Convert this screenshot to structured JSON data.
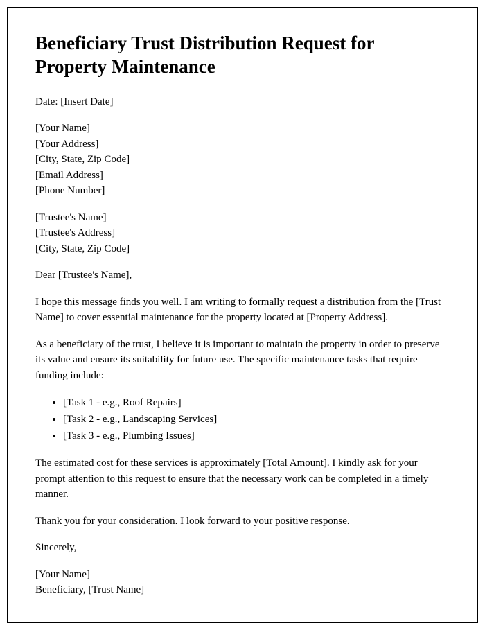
{
  "document": {
    "title": "Beneficiary Trust Distribution Request for Property Maintenance",
    "date_line": "Date: [Insert Date]",
    "sender": {
      "name": "[Your Name]",
      "address": "[Your Address]",
      "city_state_zip": "[City, State, Zip Code]",
      "email": "[Email Address]",
      "phone": "[Phone Number]"
    },
    "recipient": {
      "name": "[Trustee's Name]",
      "address": "[Trustee's Address]",
      "city_state_zip": "[City, State, Zip Code]"
    },
    "salutation": "Dear [Trustee's Name],",
    "paragraph1": "I hope this message finds you well. I am writing to formally request a distribution from the [Trust Name] to cover essential maintenance for the property located at [Property Address].",
    "paragraph2": "As a beneficiary of the trust, I believe it is important to maintain the property in order to preserve its value and ensure its suitability for future use. The specific maintenance tasks that require funding include:",
    "tasks": {
      "task1": "[Task 1 - e.g., Roof Repairs]",
      "task2": "[Task 2 - e.g., Landscaping Services]",
      "task3": "[Task 3 - e.g., Plumbing Issues]"
    },
    "paragraph3": "The estimated cost for these services is approximately [Total Amount]. I kindly ask for your prompt attention to this request to ensure that the necessary work can be completed in a timely manner.",
    "paragraph4": "Thank you for your consideration. I look forward to your positive response.",
    "closing": "Sincerely,",
    "signature": {
      "name": "[Your Name]",
      "role": "Beneficiary, [Trust Name]"
    }
  },
  "styling": {
    "page_border_color": "#000000",
    "background_color": "#ffffff",
    "text_color": "#000000",
    "font_family": "Georgia, Times New Roman, serif",
    "title_fontsize": 27,
    "body_fontsize": 15,
    "page_padding": "35px 40px",
    "line_height": 1.5
  }
}
